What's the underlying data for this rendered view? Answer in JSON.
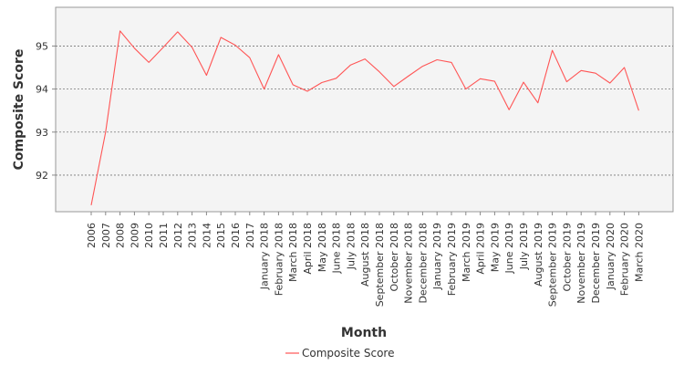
{
  "chart_data": {
    "type": "line",
    "xlabel": "Month",
    "ylabel": "Composite Score",
    "ylim": [
      91.15,
      95.9
    ],
    "yticks": [
      92,
      93,
      94,
      95
    ],
    "grid": true,
    "legend_position": "bottom",
    "colors": {
      "series": "#ff5555",
      "plot_background": "#f4f4f4",
      "grid": "#777777"
    },
    "categories": [
      "2006",
      "2007",
      "2008",
      "2009",
      "2010",
      "2011",
      "2012",
      "2013",
      "2014",
      "2015",
      "2016",
      "2017",
      "January 2018",
      "February 2018",
      "March 2018",
      "April 2018",
      "May 2018",
      "June 2018",
      "July 2018",
      "August 2018",
      "September 2018",
      "October 2018",
      "November 2018",
      "December 2018",
      "January 2019",
      "February 2019",
      "March 2019",
      "April 2019",
      "May 2019",
      "June 2019",
      "July 2019",
      "August 2019",
      "September 2019",
      "October 2019",
      "November 2019",
      "December 2019",
      "January 2020",
      "February 2020",
      "March 2020"
    ],
    "series": [
      {
        "name": "Composite Score",
        "values": [
          91.3,
          93.0,
          95.35,
          94.95,
          94.62,
          94.97,
          95.33,
          94.97,
          94.32,
          95.2,
          95.02,
          94.73,
          94.0,
          94.8,
          94.1,
          93.95,
          94.15,
          94.25,
          94.56,
          94.7,
          94.4,
          94.06,
          94.3,
          94.53,
          94.68,
          94.62,
          94.0,
          94.24,
          94.18,
          93.52,
          94.16,
          93.68,
          94.9,
          94.17,
          94.43,
          94.37,
          94.14,
          94.5,
          93.5
        ]
      }
    ]
  }
}
